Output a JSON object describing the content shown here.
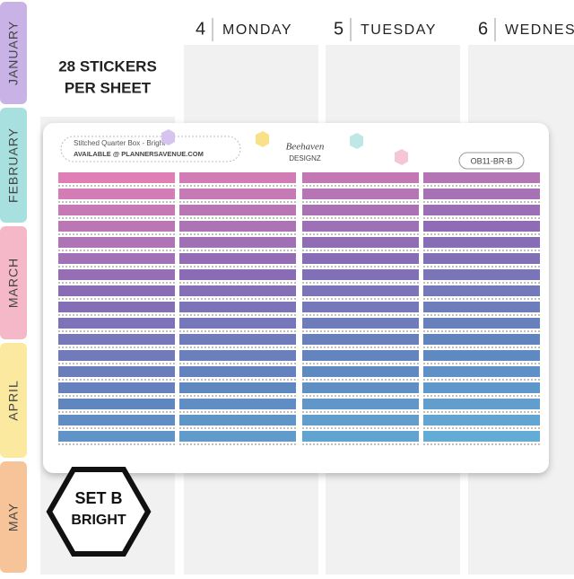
{
  "months": [
    "JANUARY",
    "FEBRUARY",
    "MARCH",
    "APRIL",
    "MAY"
  ],
  "days": [
    {
      "number": "4",
      "name": "MONDAY"
    },
    {
      "number": "5",
      "name": "TUESDAY"
    },
    {
      "number": "6",
      "name": "WEDNES"
    }
  ],
  "callout": {
    "line1": "28 STICKERS",
    "line2": "PER SHEET"
  },
  "sheet": {
    "title": "Stitched Quarter Box - Bright",
    "available": "AVAILABLE @ PLANNERSAVENUE.COM",
    "logo_line1": "Beehaven",
    "logo_line2": "DESIGNZ",
    "code": "OB11-BR-B"
  },
  "badge": {
    "line1": "SET B",
    "line2": "BRIGHT"
  }
}
